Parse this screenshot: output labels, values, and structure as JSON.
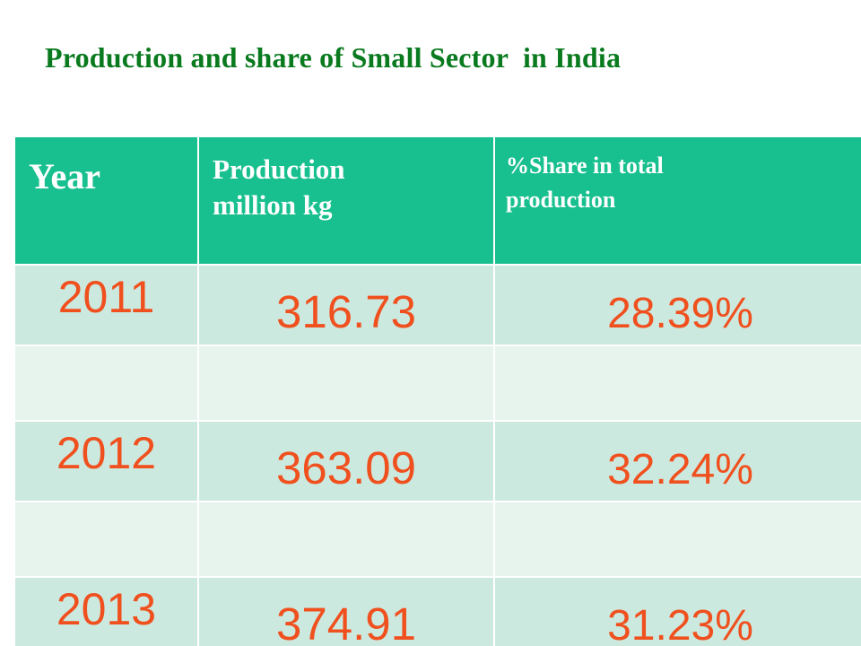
{
  "slide": {
    "title": "Production and share of Small Sector  in India"
  },
  "table": {
    "headers": {
      "year": "Year",
      "production_line1": "Production",
      "production_line2": "million kg",
      "share_line1": "%Share in total",
      "share_line2": "production"
    },
    "rows": [
      {
        "year": "2011",
        "production": "316.73",
        "share": "28.39%"
      },
      {
        "year": "",
        "production": "",
        "share": ""
      },
      {
        "year": "2012",
        "production": "363.09",
        "share": "32.24%"
      },
      {
        "year": "",
        "production": "",
        "share": ""
      },
      {
        "year": "2013",
        "production": "374.91",
        "share": "31.23%"
      }
    ]
  },
  "colors": {
    "title": "#0a7a1e",
    "header_bg": "#19c08f",
    "header_text": "#ffffff",
    "data_row_bg": "#cce9df",
    "empty_row_bg": "#e7f4ee",
    "value_text": "#f0501e"
  }
}
